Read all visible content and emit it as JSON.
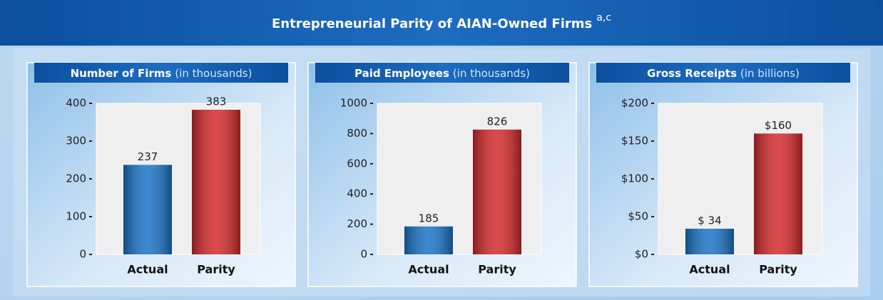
{
  "title": "Entrepreneurial Parity of AIAN-Owned Firms",
  "title_superscript": "a,c",
  "chart_data": [
    {
      "type": "bar",
      "title": "Number of Firms",
      "subtitle": "(in thousands)",
      "categories": [
        "Actual",
        "Parity"
      ],
      "values": [
        237,
        383
      ],
      "colors": [
        "#1a74c8",
        "#d42a2c"
      ],
      "ylim": [
        0,
        400
      ],
      "yticks": [
        0,
        100,
        200,
        300,
        400
      ]
    },
    {
      "type": "bar",
      "title": "Paid Employees",
      "subtitle": "(in thousands)",
      "categories": [
        "Actual",
        "Parity"
      ],
      "values": [
        185,
        826
      ],
      "colors": [
        "#1a74c8",
        "#d42a2c"
      ],
      "ylim": [
        0,
        1000
      ],
      "yticks": [
        0,
        200,
        400,
        600,
        800,
        1000
      ]
    },
    {
      "type": "bar",
      "title": "Gross Receipts",
      "subtitle": "(in billions)",
      "categories": [
        "Actual",
        "Parity"
      ],
      "values": [
        34,
        160
      ],
      "value_labels": [
        "$ 34",
        "$160"
      ],
      "colors": [
        "#1a74c8",
        "#d42a2c"
      ],
      "ylim": [
        0,
        200
      ],
      "yticks": [
        {
          "value": 0,
          "label": "$0"
        },
        {
          "value": 50,
          "label": "$50"
        },
        {
          "value": 100,
          "label": "$100"
        },
        {
          "value": 150,
          "label": "$150"
        },
        {
          "value": 200,
          "label": "$200"
        }
      ]
    }
  ]
}
